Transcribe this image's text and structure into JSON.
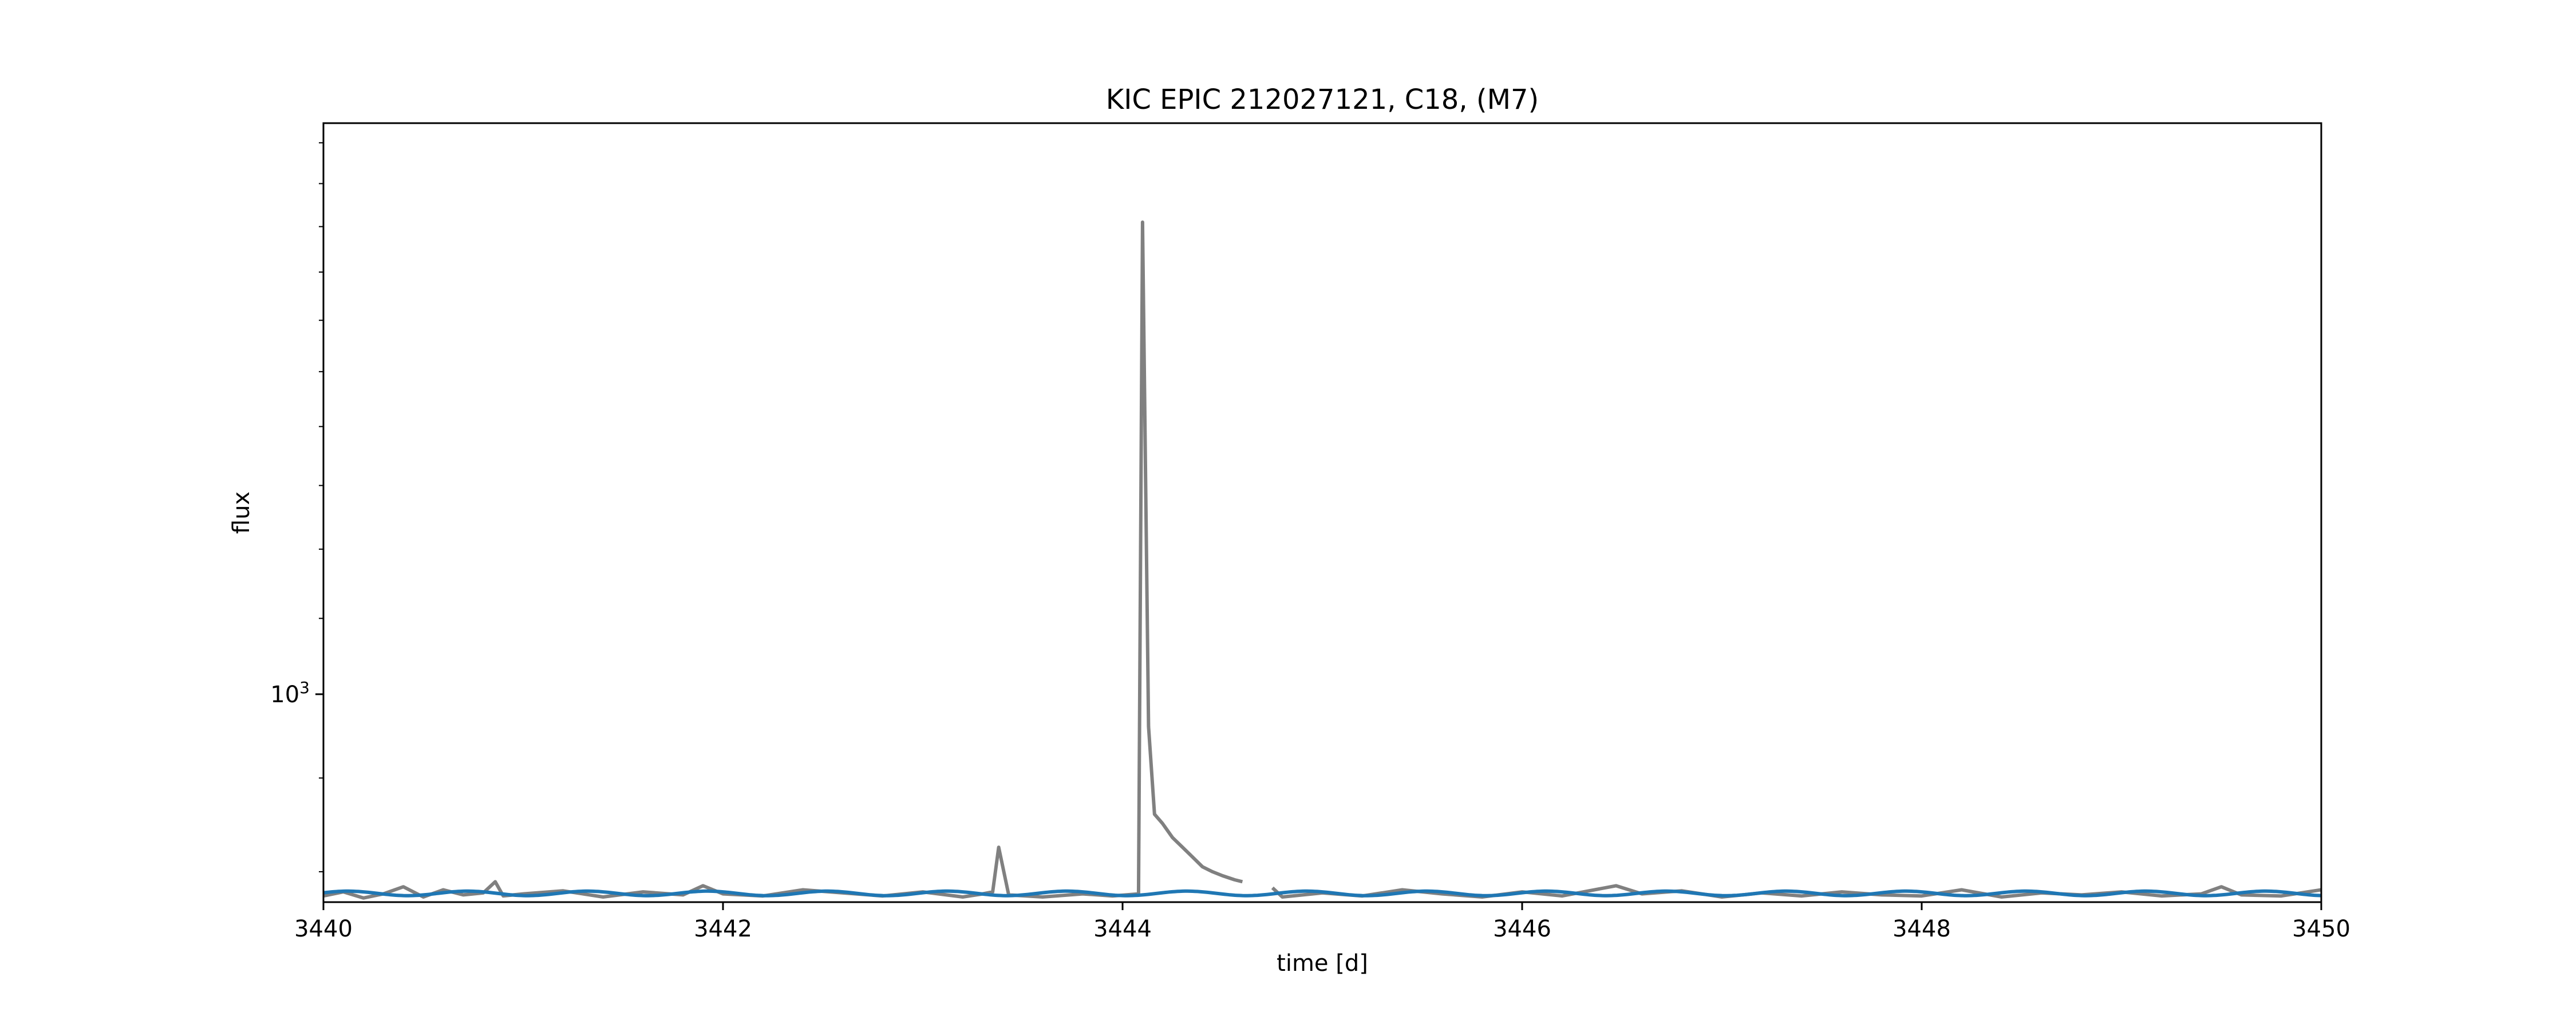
{
  "chart_data": {
    "type": "line",
    "title": "KIC EPIC 212027121, C18, (M7)",
    "xlabel": "time [d]",
    "ylabel": "flux",
    "yscale": "log",
    "xlim": [
      3440,
      3450
    ],
    "ylim": [
      770,
      2050
    ],
    "x_ticks": [
      {
        "value": 3440,
        "label": "3440"
      },
      {
        "value": 3442,
        "label": "3442"
      },
      {
        "value": 3444,
        "label": "3444"
      },
      {
        "value": 3446,
        "label": "3446"
      },
      {
        "value": 3448,
        "label": "3448"
      },
      {
        "value": 3450,
        "label": "3450"
      }
    ],
    "y_ticks": [
      {
        "value": 1000,
        "label_base": "10",
        "label_exp": "3"
      }
    ],
    "y_minor_ticks": [
      800,
      900,
      1100,
      1200,
      1300,
      1400,
      1500,
      1600,
      1700,
      1800,
      1900,
      2000
    ],
    "grid": false,
    "colors": {
      "flux": "#808080",
      "model": "#1f77b4"
    },
    "series": [
      {
        "role": "flux",
        "points": [
          [
            3440.0,
            776
          ],
          [
            3440.1,
            780
          ],
          [
            3440.2,
            774
          ],
          [
            3440.3,
            778
          ],
          [
            3440.4,
            785
          ],
          [
            3440.5,
            775
          ],
          [
            3440.6,
            782
          ],
          [
            3440.7,
            777
          ],
          [
            3440.8,
            779
          ],
          [
            3440.86,
            790
          ],
          [
            3440.9,
            776
          ],
          [
            3441.0,
            778
          ],
          [
            3441.2,
            781
          ],
          [
            3441.4,
            775
          ],
          [
            3441.6,
            780
          ],
          [
            3441.8,
            777
          ],
          [
            3441.9,
            786
          ],
          [
            3442.0,
            778
          ],
          [
            3442.2,
            776
          ],
          [
            3442.4,
            782
          ],
          [
            3442.6,
            779
          ],
          [
            3442.8,
            776
          ],
          [
            3443.0,
            780
          ],
          [
            3443.2,
            775
          ],
          [
            3443.3,
            778
          ],
          [
            3443.35,
            780
          ],
          [
            3443.38,
            825
          ],
          [
            3443.43,
            777
          ],
          [
            3443.6,
            775
          ],
          [
            3443.8,
            778
          ],
          [
            3443.95,
            776
          ],
          [
            3444.08,
            778
          ],
          [
            3444.1,
            1810
          ],
          [
            3444.13,
            960
          ],
          [
            3444.16,
            860
          ],
          [
            3444.2,
            850
          ],
          [
            3444.25,
            835
          ],
          [
            3444.3,
            825
          ],
          [
            3444.35,
            815
          ],
          [
            3444.4,
            805
          ],
          [
            3444.45,
            800
          ],
          [
            3444.5,
            796
          ],
          [
            3444.56,
            792
          ],
          [
            3444.6,
            790
          ]
        ],
        "points_after_gap": [
          [
            3444.75,
            784
          ],
          [
            3444.8,
            775
          ],
          [
            3445.0,
            779
          ],
          [
            3445.2,
            776
          ],
          [
            3445.4,
            782
          ],
          [
            3445.6,
            778
          ],
          [
            3445.8,
            775
          ],
          [
            3446.0,
            780
          ],
          [
            3446.2,
            776
          ],
          [
            3446.47,
            786
          ],
          [
            3446.6,
            778
          ],
          [
            3446.8,
            781
          ],
          [
            3447.0,
            775
          ],
          [
            3447.2,
            779
          ],
          [
            3447.4,
            776
          ],
          [
            3447.6,
            780
          ],
          [
            3447.8,
            777
          ],
          [
            3448.0,
            776
          ],
          [
            3448.2,
            782
          ],
          [
            3448.4,
            775
          ],
          [
            3448.6,
            779
          ],
          [
            3448.8,
            777
          ],
          [
            3449.0,
            780
          ],
          [
            3449.2,
            776
          ],
          [
            3449.4,
            778
          ],
          [
            3449.5,
            785
          ],
          [
            3449.6,
            777
          ],
          [
            3449.8,
            776
          ],
          [
            3450.0,
            782
          ]
        ]
      },
      {
        "role": "model",
        "baseline": 778.5,
        "amplitude": 2.2,
        "period": 0.6,
        "x_range": [
          3440,
          3450
        ]
      }
    ]
  }
}
